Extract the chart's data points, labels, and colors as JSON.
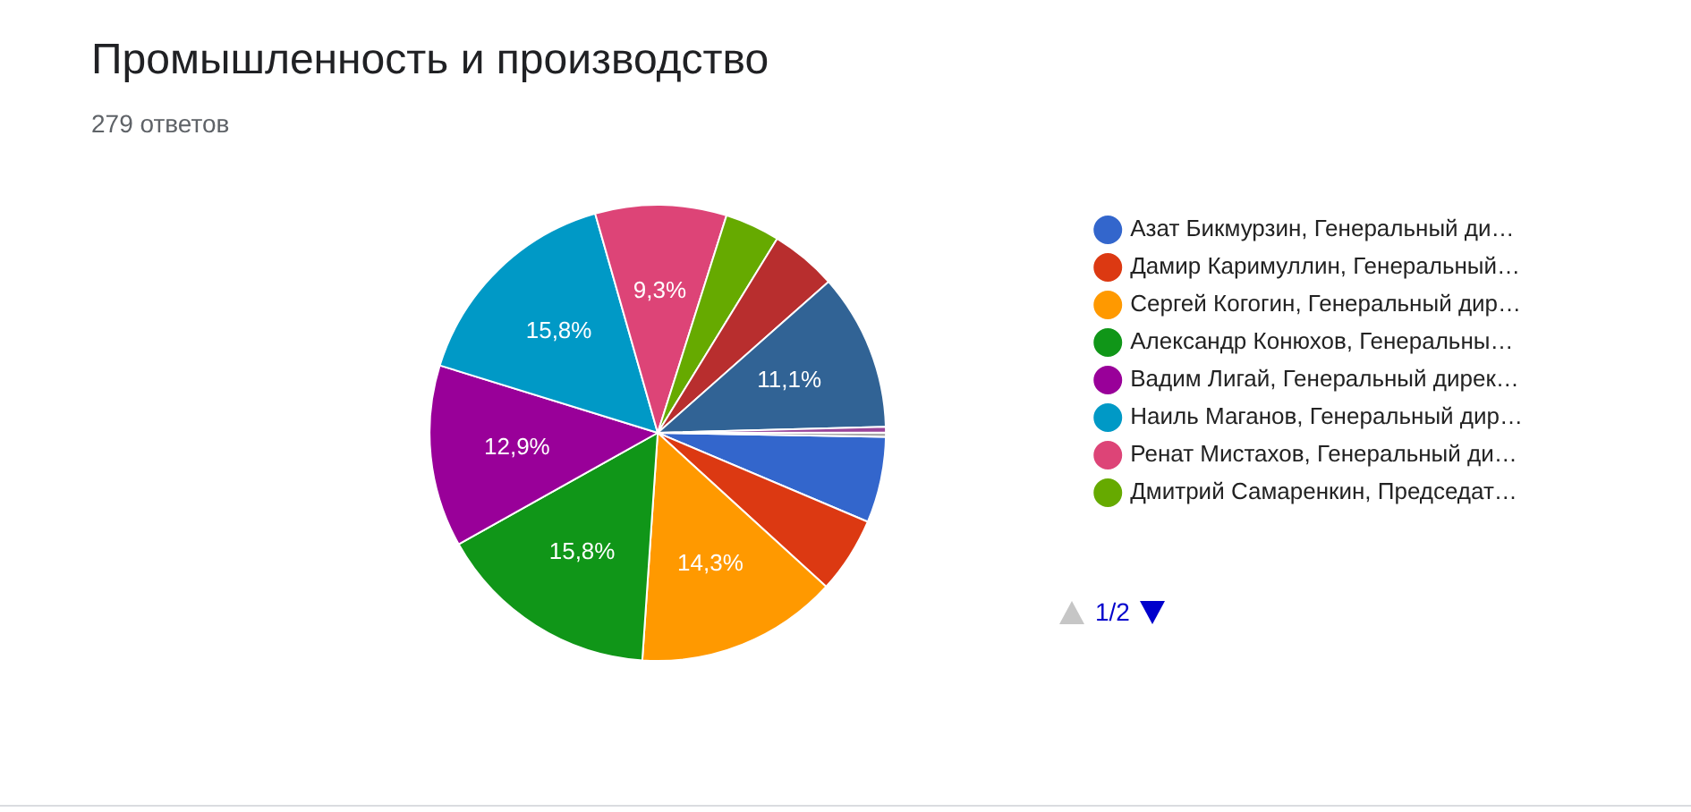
{
  "chart_data": {
    "type": "pie",
    "title": "Промышленность и производство",
    "subtitle": "279 ответов",
    "categories": [
      "Азат Бикмурзин, Генеральный ди…",
      "Дамир Каримуллин, Генеральный…",
      "Сергей Когогин, Генеральный дир…",
      "Александр Конюхов, Генеральны…",
      "Вадим Лигай, Генеральный дирек…",
      "Наиль Маганов, Генеральный дир…",
      "Ренат Мистахов, Генеральный ди…",
      "Дмитрий Самаренкин, Председат…",
      null,
      null,
      null,
      null
    ],
    "values": [
      6.1,
      5.4,
      14.3,
      15.8,
      12.9,
      15.8,
      9.3,
      3.9,
      4.7,
      11.1,
      0.4,
      0.3
    ],
    "value_labels": [
      null,
      null,
      "14,3%",
      "15,8%",
      "12,9%",
      "15,8%",
      "9,3%",
      null,
      null,
      "11,1%",
      null,
      null
    ],
    "colors": [
      "#3366cc",
      "#dc3912",
      "#ff9900",
      "#109618",
      "#990099",
      "#0099c6",
      "#dd4477",
      "#66aa00",
      "#b82e2e",
      "#316395",
      "#994499",
      "#aaaaaa"
    ],
    "legend": "right",
    "annotations": [
      "1/2"
    ]
  }
}
